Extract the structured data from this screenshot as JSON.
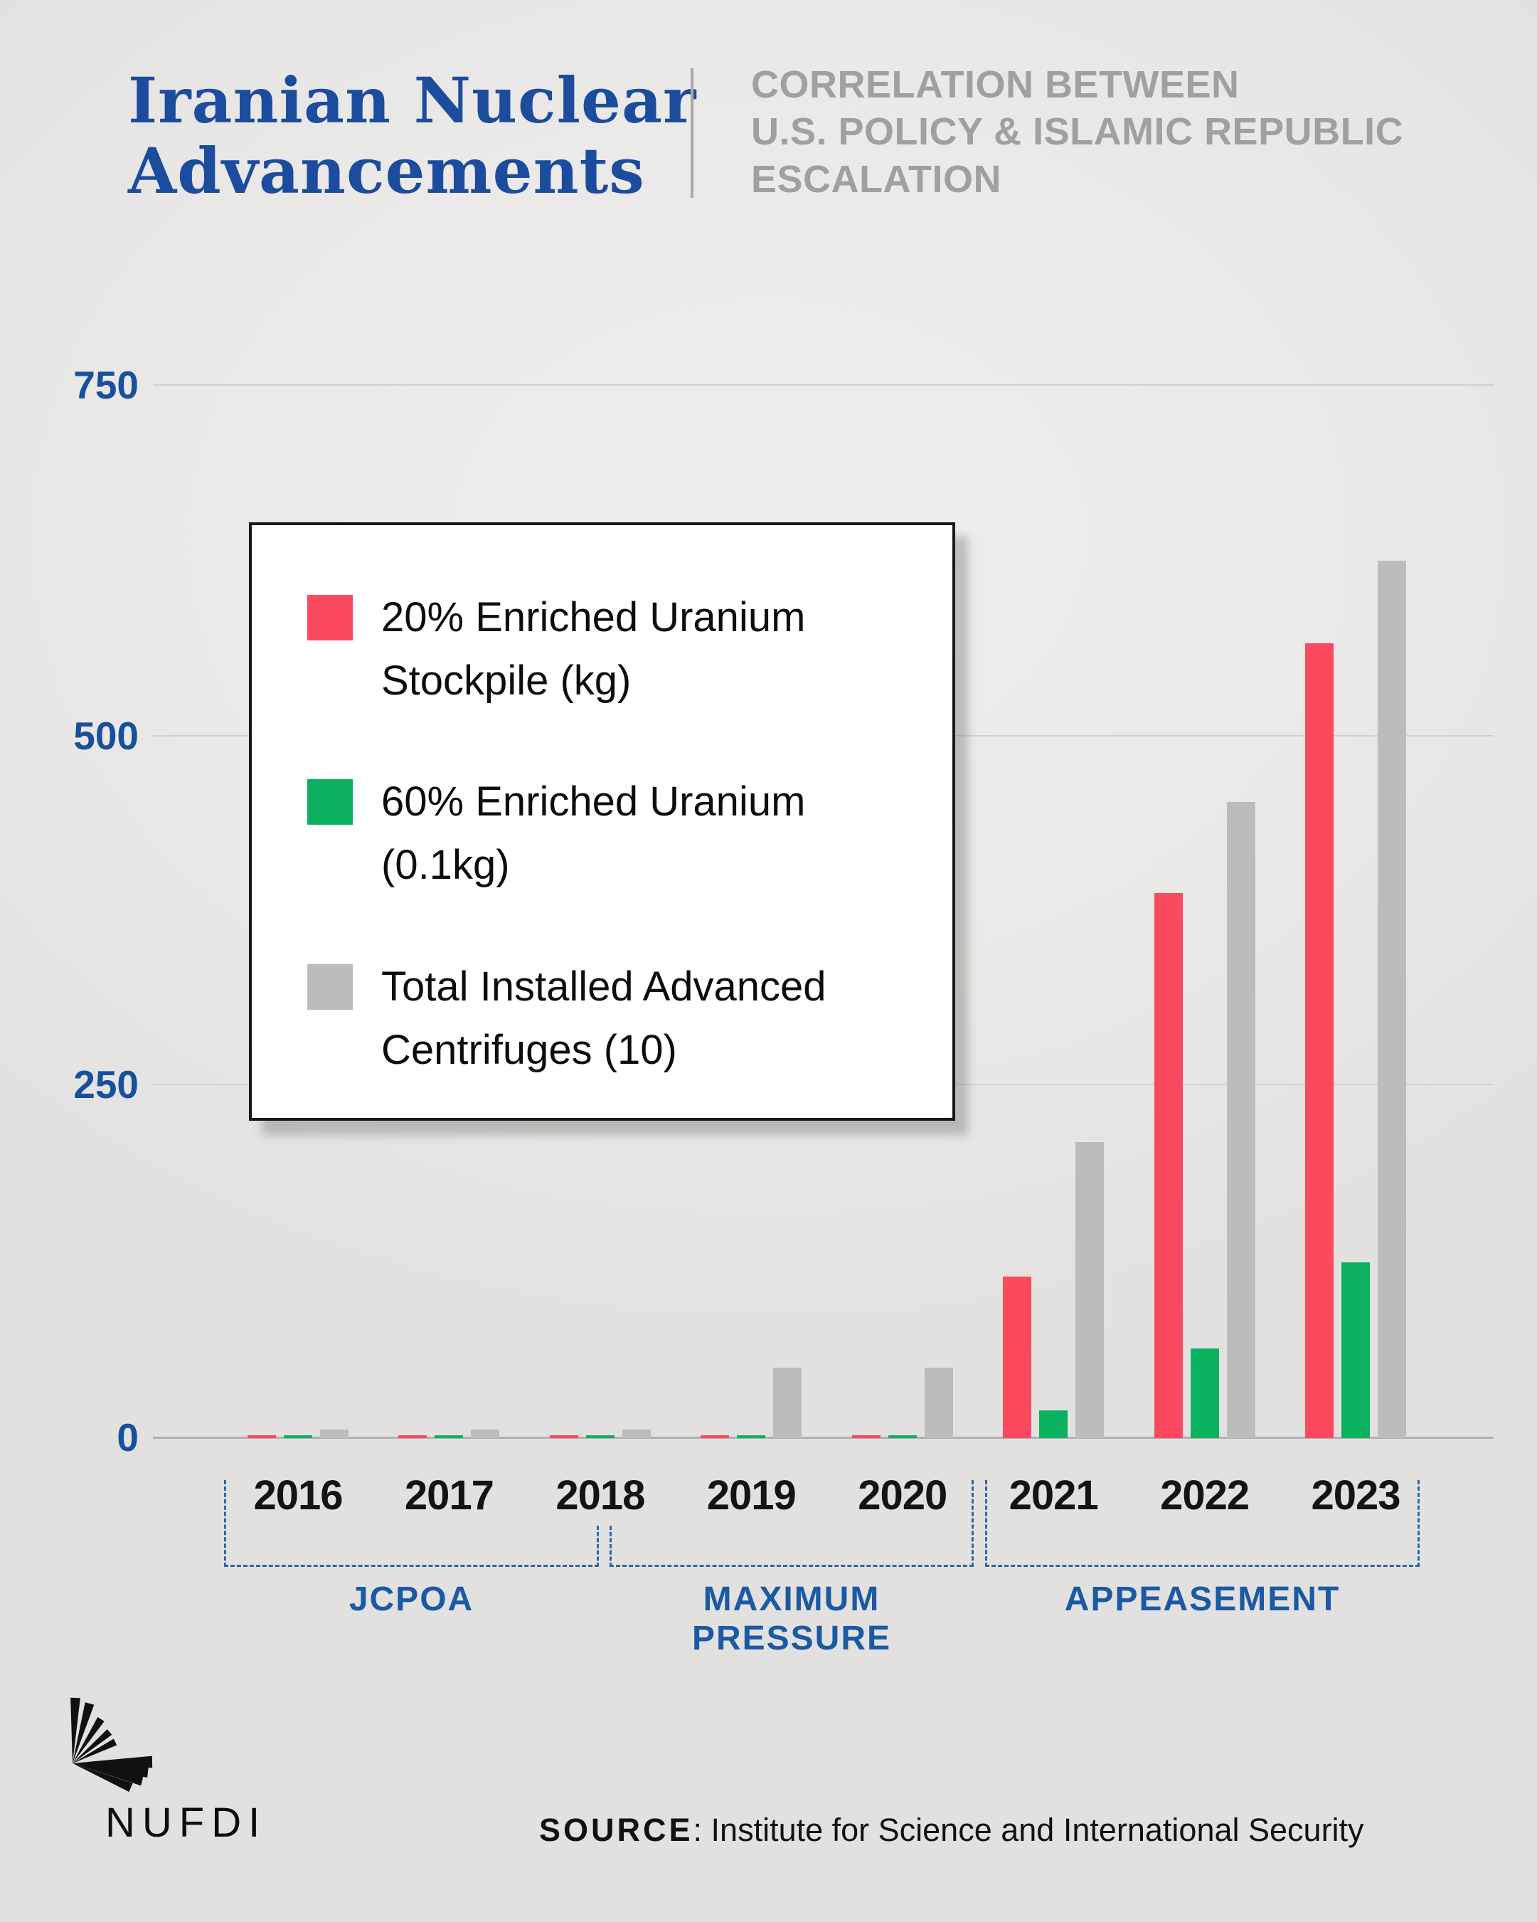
{
  "header": {
    "title_line1": "Iranian Nuclear",
    "title_line2": "Advancements",
    "subtitle_line1": "CORRELATION BETWEEN",
    "subtitle_line2": "U.S. POLICY & ISLAMIC REPUBLIC",
    "subtitle_line3": "ESCALATION"
  },
  "chart_data": {
    "type": "bar",
    "title": "Iranian Nuclear Advancements",
    "xlabel": "",
    "ylabel": "",
    "ylim": [
      0,
      750
    ],
    "y_ticks": [
      "750",
      "500",
      "250",
      "0"
    ],
    "grid": "horizontal",
    "legend_position": "upper-left",
    "categories": [
      "2016",
      "2017",
      "2018",
      "2019",
      "2020",
      "2021",
      "2022",
      "2023"
    ],
    "series": [
      {
        "name": "20% Enriched Uranium Stockpile (kg)",
        "color": "#fb4a5f",
        "values": [
          2,
          2,
          2,
          2,
          2,
          115,
          388,
          566
        ]
      },
      {
        "name": "60% Enriched Uranium (0.1kg)",
        "color": "#0cb160",
        "values": [
          2,
          2,
          2,
          2,
          2,
          20,
          64,
          125
        ]
      },
      {
        "name": "Total Installed Advanced Centrifuges (10)",
        "color": "#bdbcba",
        "values": [
          6,
          6,
          6,
          50,
          50,
          211,
          453,
          625
        ]
      }
    ],
    "x_periods": [
      {
        "label": "JCPOA",
        "years": [
          "2016",
          "2017",
          "2018"
        ]
      },
      {
        "label": "MAXIMUM PRESSURE",
        "years": [
          "2018",
          "2019",
          "2020"
        ]
      },
      {
        "label": "APPEASEMENT",
        "years": [
          "2021",
          "2022",
          "2023"
        ]
      }
    ]
  },
  "legend": {
    "items": [
      {
        "color": "#fb4a5f",
        "label_line1": "20% Enriched Uranium",
        "label_line2": "Stockpile (kg)"
      },
      {
        "color": "#0cb160",
        "label_line1": "60% Enriched Uranium",
        "label_line2": "(0.1kg)"
      },
      {
        "color": "#bdbcba",
        "label_line1": "Total Installed Advanced",
        "label_line2": "Centrifuges (10)"
      }
    ]
  },
  "periods": {
    "p1": "JCPOA",
    "p2": "MAXIMUM PRESSURE",
    "p3": "APPEASEMENT"
  },
  "footer": {
    "logo_text": "NUFDI",
    "source_label": "SOURCE",
    "source_text": ": Institute for Science and International Security"
  }
}
